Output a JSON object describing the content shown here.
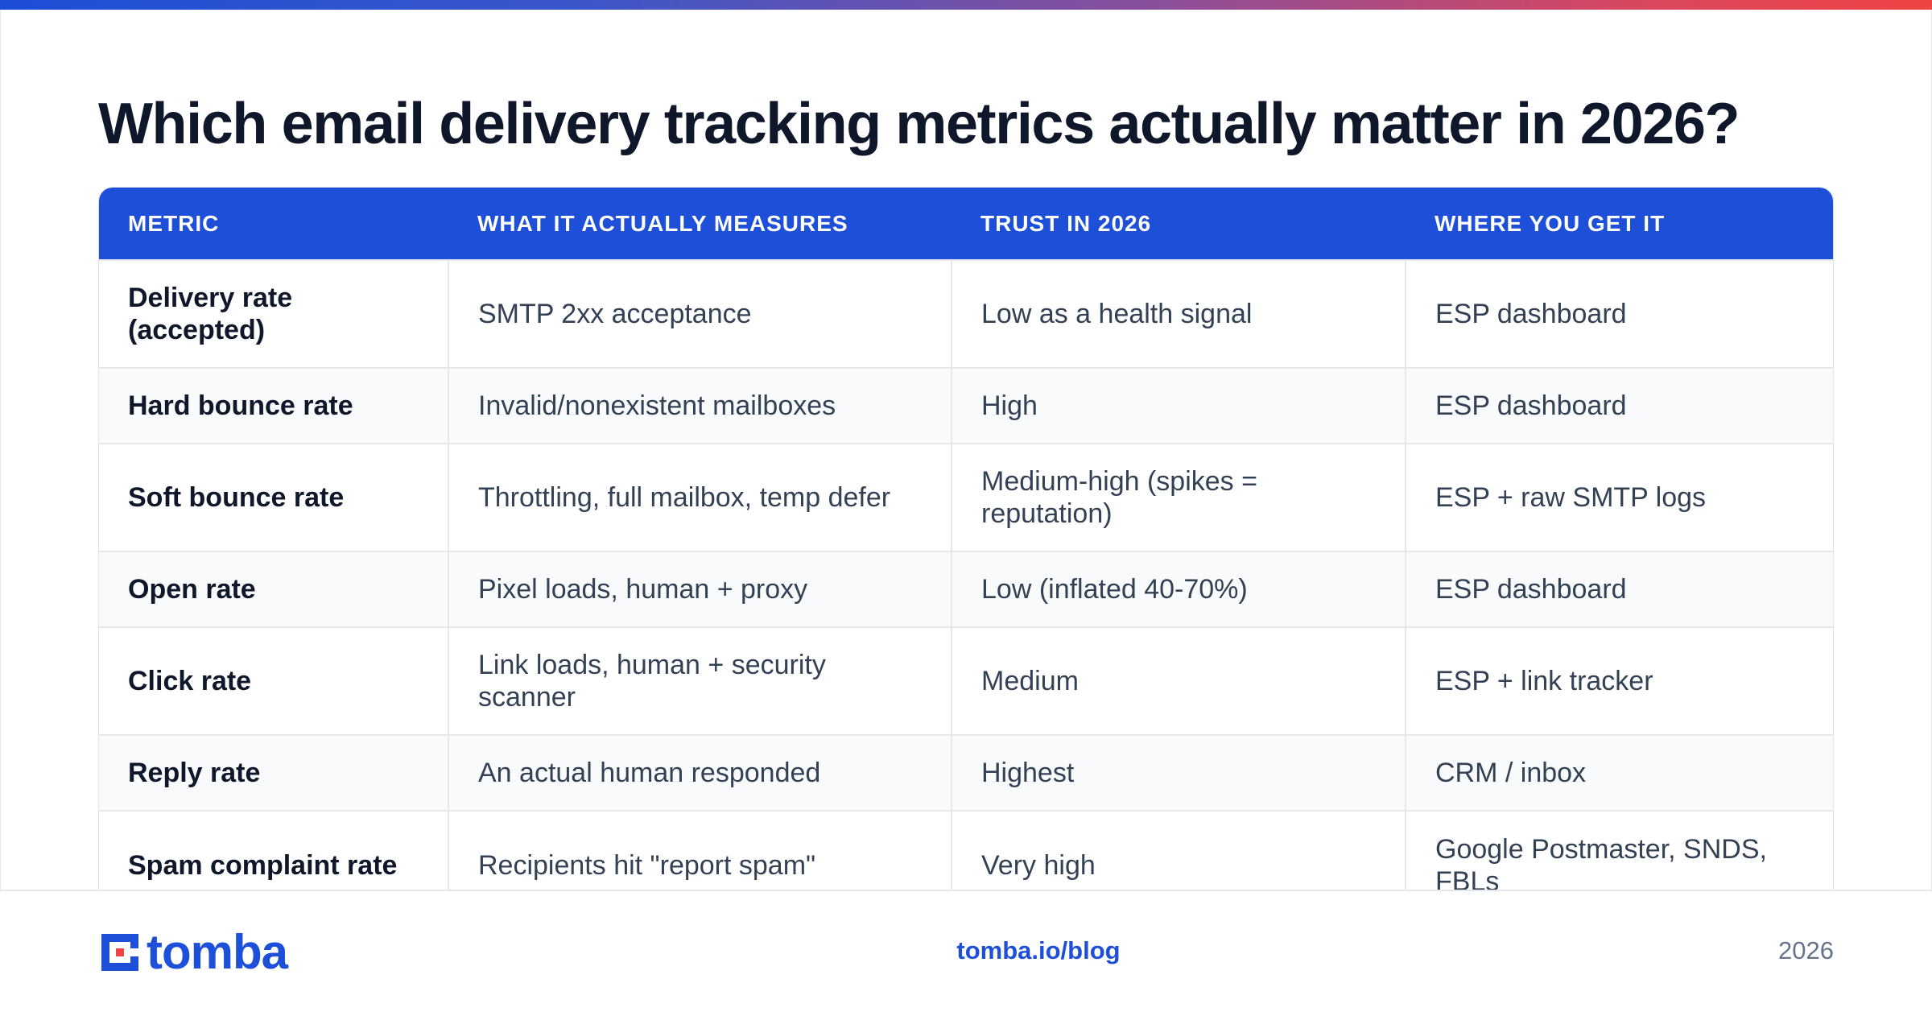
{
  "title": "Which email delivery tracking metrics actually matter in 2026?",
  "table": {
    "headers": [
      "METRIC",
      "WHAT IT ACTUALLY MEASURES",
      "TRUST IN 2026",
      "WHERE YOU GET IT"
    ],
    "rows": [
      [
        "Delivery rate (accepted)",
        "SMTP 2xx acceptance",
        "Low as a health signal",
        "ESP dashboard"
      ],
      [
        "Hard bounce rate",
        "Invalid/nonexistent mailboxes",
        "High",
        "ESP dashboard"
      ],
      [
        "Soft bounce rate",
        "Throttling, full mailbox, temp defer",
        "Medium-high (spikes = reputation)",
        "ESP + raw SMTP logs"
      ],
      [
        "Open rate",
        "Pixel loads, human + proxy",
        "Low (inflated 40-70%)",
        "ESP dashboard"
      ],
      [
        "Click rate",
        "Link loads, human + security scanner",
        "Medium",
        "ESP + link tracker"
      ],
      [
        "Reply rate",
        "An actual human responded",
        "Highest",
        "CRM / inbox"
      ],
      [
        "Spam complaint rate",
        "Recipients hit \"report spam\"",
        "Very high",
        "Google Postmaster, SNDS, FBLs"
      ]
    ]
  },
  "footer": {
    "brand": "tomba",
    "link": "tomba.io/blog",
    "year": "2026"
  },
  "colors": {
    "accent": "#1d4fd8",
    "title": "#0f172a",
    "body_text": "#334155",
    "muted": "#64748b"
  }
}
